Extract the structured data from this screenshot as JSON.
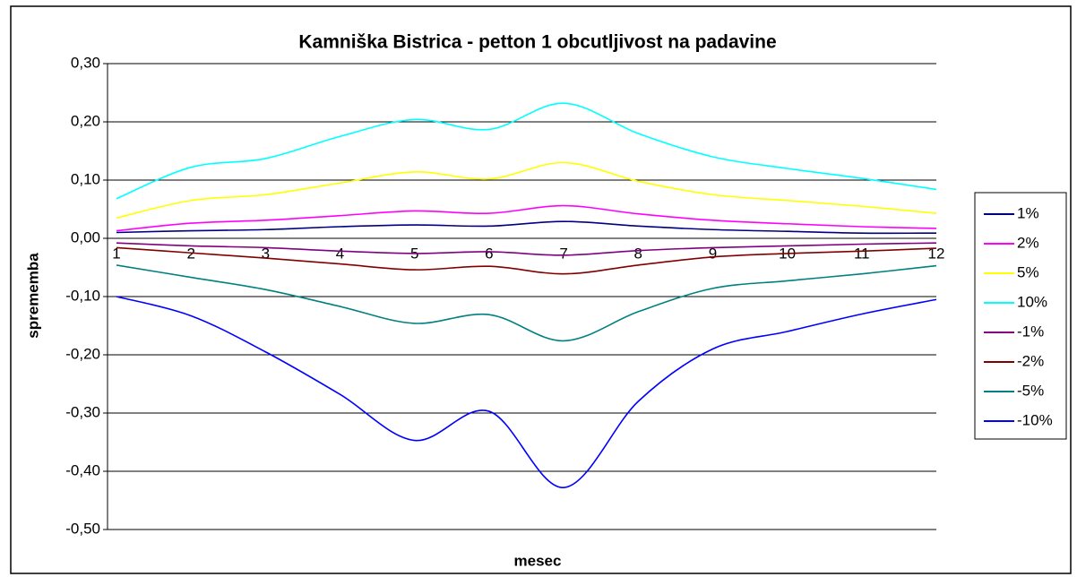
{
  "chart_data": {
    "type": "line",
    "title": "Kamniška Bistrica - petton 1 obcutljivost na padavine",
    "x_label": "mesec",
    "y_label": "sprememba",
    "categories": [
      "1",
      "2",
      "3",
      "4",
      "5",
      "6",
      "7",
      "8",
      "9",
      "10",
      "11",
      "12"
    ],
    "ylim": [
      -0.5,
      0.3
    ],
    "yticks": [
      {
        "value": -0.5,
        "label": "-0,50"
      },
      {
        "value": -0.4,
        "label": "-0,40"
      },
      {
        "value": -0.3,
        "label": "-0,30"
      },
      {
        "value": -0.2,
        "label": "-0,20"
      },
      {
        "value": -0.1,
        "label": "-0,10"
      },
      {
        "value": 0,
        "label": "0,00"
      },
      {
        "value": 0.1,
        "label": "0,10"
      },
      {
        "value": 0.2,
        "label": "0,20"
      },
      {
        "value": 0.3,
        "label": "0,30"
      }
    ],
    "grid": true,
    "legend": "right",
    "series": [
      {
        "name": "1%",
        "color": "#000080",
        "values": [
          0.01,
          0.013,
          0.015,
          0.02,
          0.023,
          0.021,
          0.029,
          0.021,
          0.015,
          0.012,
          0.009,
          0.009
        ]
      },
      {
        "name": "2%",
        "color": "#ff00ff",
        "values": [
          0.013,
          0.026,
          0.031,
          0.039,
          0.047,
          0.043,
          0.056,
          0.042,
          0.031,
          0.025,
          0.02,
          0.017
        ]
      },
      {
        "name": "5%",
        "color": "#ffff00",
        "values": [
          0.035,
          0.065,
          0.075,
          0.095,
          0.114,
          0.102,
          0.13,
          0.098,
          0.075,
          0.065,
          0.055,
          0.043
        ]
      },
      {
        "name": "10%",
        "color": "#00ffff",
        "values": [
          0.068,
          0.122,
          0.137,
          0.175,
          0.204,
          0.187,
          0.232,
          0.18,
          0.14,
          0.12,
          0.103,
          0.084
        ]
      },
      {
        "name": "-1%",
        "color": "#800080",
        "values": [
          -0.008,
          -0.013,
          -0.016,
          -0.022,
          -0.026,
          -0.023,
          -0.029,
          -0.021,
          -0.016,
          -0.013,
          -0.01,
          -0.008
        ]
      },
      {
        "name": "-2%",
        "color": "#800000",
        "values": [
          -0.016,
          -0.025,
          -0.034,
          -0.044,
          -0.054,
          -0.048,
          -0.061,
          -0.046,
          -0.032,
          -0.026,
          -0.022,
          -0.017
        ]
      },
      {
        "name": "-5%",
        "color": "#008080",
        "values": [
          -0.046,
          -0.067,
          -0.088,
          -0.117,
          -0.146,
          -0.131,
          -0.176,
          -0.126,
          -0.086,
          -0.073,
          -0.061,
          -0.047
        ]
      },
      {
        "name": "-10%",
        "color": "#0000ff",
        "values": [
          -0.1,
          -0.133,
          -0.195,
          -0.268,
          -0.347,
          -0.297,
          -0.428,
          -0.28,
          -0.19,
          -0.16,
          -0.13,
          -0.105
        ]
      }
    ]
  }
}
